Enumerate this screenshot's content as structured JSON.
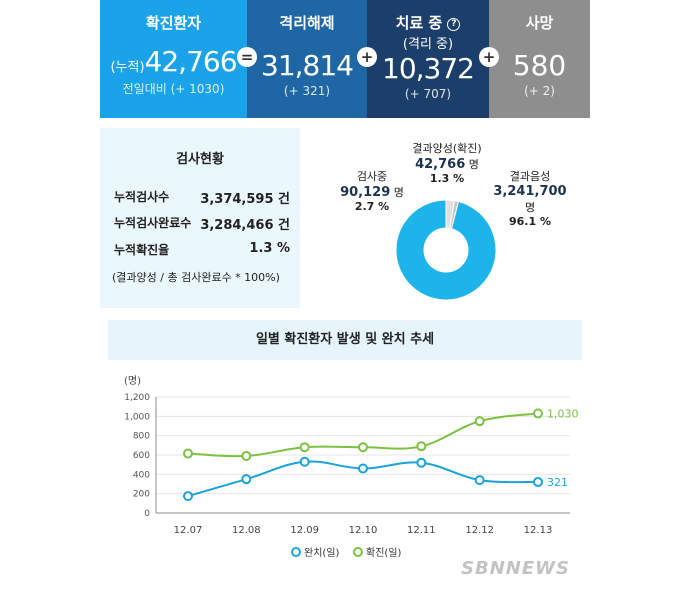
{
  "stats": {
    "confirmed": {
      "title": "확진환자",
      "prefix": "(누적)",
      "value": "42,766",
      "change": "전일대비 (+ 1030)",
      "color": "#1aa3e8"
    },
    "released": {
      "title": "격리해제",
      "value": "31,814",
      "change": "(+ 321)",
      "color": "#1e67a4"
    },
    "treatment": {
      "title": "치료 중",
      "help_icon": "?",
      "subtitle": "(격리 중)",
      "value": "10,372",
      "change": "(+ 707)",
      "color": "#1b3e6b"
    },
    "deaths": {
      "title": "사망",
      "value": "580",
      "change": "(+ 2)",
      "color": "#8e8e8e"
    },
    "operators": {
      "eq": "=",
      "plus1": "+",
      "plus2": "+"
    }
  },
  "test_status": {
    "title": "검사현황",
    "rows": [
      {
        "label": "누적검사수",
        "value": "3,374,595 건"
      },
      {
        "label": "누적검사완료수",
        "value": "3,284,466 건"
      },
      {
        "label": "누적확진율",
        "value": "1.3 %"
      }
    ],
    "note": "(결과양성 / 총 검사완료수 * 100%)"
  },
  "pie": {
    "positive": {
      "label": "결과양성(확진)",
      "value": "42,766",
      "unit": "명",
      "pct": "1.3 %",
      "frac": 0.013,
      "color": "#c8c8c8"
    },
    "testing": {
      "label": "검사중",
      "value": "90,129",
      "unit": "명",
      "pct": "2.7 %",
      "frac": 0.027,
      "color": "#e0e0e0"
    },
    "negative": {
      "label": "결과음성",
      "value": "3,241,700",
      "unit": "명",
      "pct": "96.1 %",
      "frac": 0.961,
      "color": "#1db4ea"
    }
  },
  "chart_data": {
    "type": "line",
    "title": "일별 확진환자 발생 및 완치 추세",
    "ylabel": "(명)",
    "x": [
      "12.07",
      "12.08",
      "12.09",
      "12.10",
      "12.11",
      "12.12",
      "12.13"
    ],
    "ylim": [
      0,
      1200
    ],
    "yticks": [
      0,
      200,
      400,
      600,
      800,
      1000,
      1200
    ],
    "ytick_labels": [
      "0",
      "200",
      "400",
      "600",
      "800",
      "1,000",
      "1,200"
    ],
    "series": [
      {
        "name": "완치(일)",
        "values": [
          175,
          350,
          530,
          460,
          520,
          340,
          321
        ],
        "color": "#1aa3d8",
        "end_label": "321"
      },
      {
        "name": "확진(일)",
        "values": [
          615,
          590,
          680,
          680,
          690,
          950,
          1030
        ],
        "color": "#7cc142",
        "end_label": "1,030"
      }
    ]
  },
  "watermark": "SBNNEWS"
}
